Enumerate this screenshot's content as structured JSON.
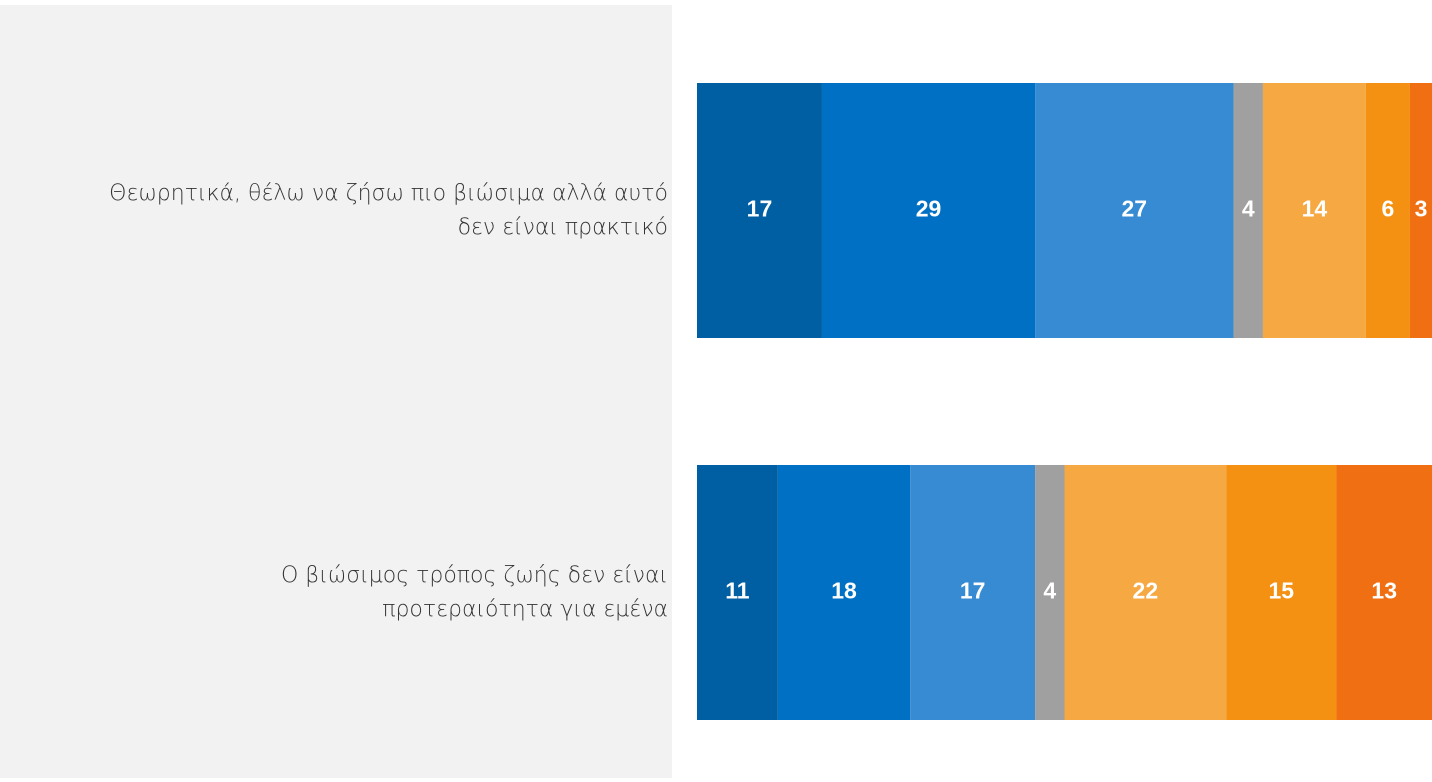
{
  "chart_data": {
    "type": "stacked-bar-horizontal",
    "categories": [
      "Θεωρητικά, θέλω να ζήσω πιο βιώσιμα αλλά αυτό δεν είναι πρακτικό",
      "Ο βιώσιμος τρόπος ζωής δεν είναι προτεραιότητα για εμένα"
    ],
    "xlim": [
      0,
      100
    ],
    "series": [
      {
        "color": "#005ea2",
        "values": [
          17,
          11
        ]
      },
      {
        "color": "#0070c4",
        "values": [
          29,
          18
        ]
      },
      {
        "color": "#368bd2",
        "values": [
          27,
          17
        ]
      },
      {
        "color": "#a0a0a0",
        "values": [
          4,
          4
        ]
      },
      {
        "color": "#f6a843",
        "values": [
          14,
          22
        ]
      },
      {
        "color": "#f49112",
        "values": [
          6,
          15
        ]
      },
      {
        "color": "#f06f13",
        "values": [
          3,
          13
        ]
      }
    ]
  }
}
